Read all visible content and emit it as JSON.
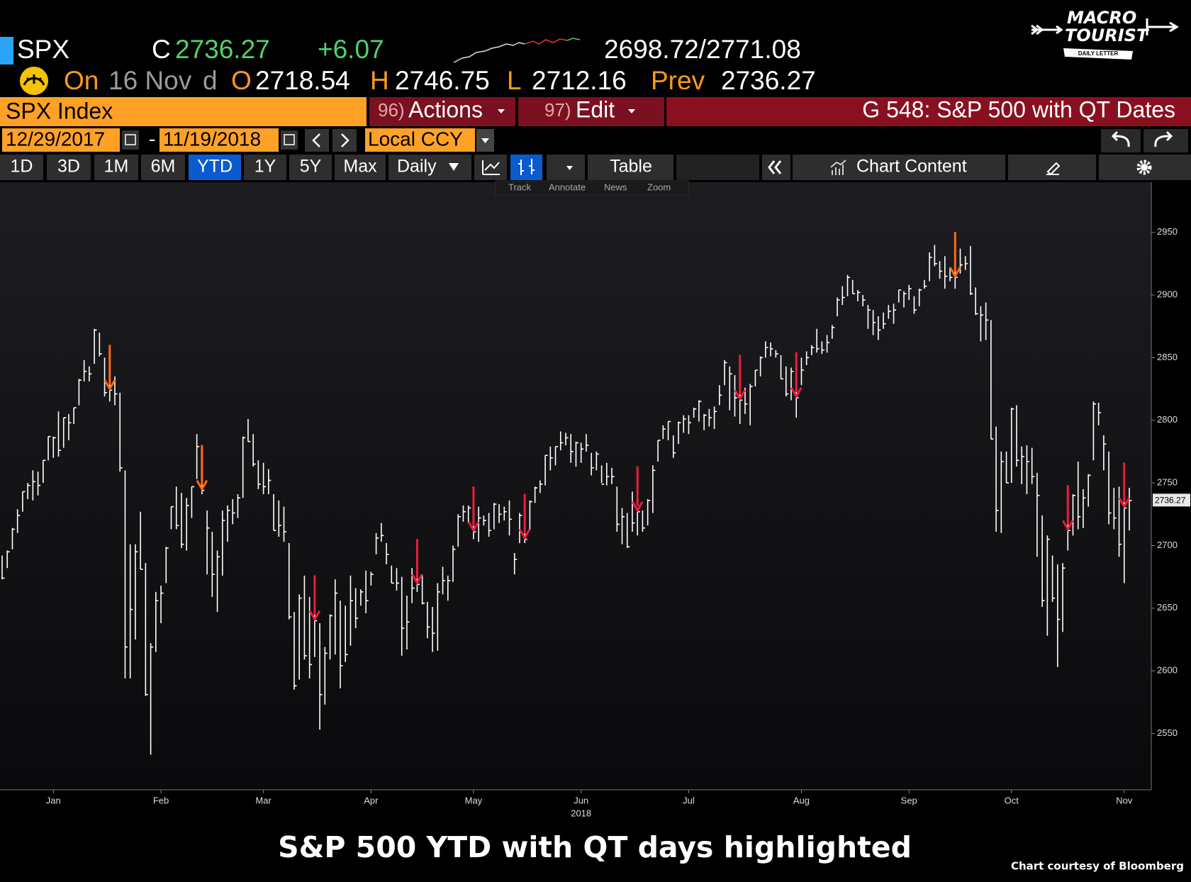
{
  "header": {
    "ticker": "SPX",
    "c_label": "C",
    "last": 2736.27,
    "change": "+6.07",
    "range": "2698.72/2771.08",
    "on_label": "On",
    "date": "16 Nov",
    "freq": "d",
    "open_label": "O",
    "open": 2718.54,
    "high_label": "H",
    "high": 2746.75,
    "low_label": "L",
    "low": 2712.16,
    "prev_label": "Prev",
    "prev": 2736.27
  },
  "toolbar": {
    "security": "SPX Index",
    "actions_num": "96)",
    "actions": "Actions",
    "edit_num": "97)",
    "edit": "Edit",
    "title": "G 548: S&P 500 with QT Dates",
    "start_date": "12/29/2017",
    "dash": "-",
    "end_date": "11/19/2018",
    "currency": "Local CCY",
    "periods": [
      "1D",
      "3D",
      "1M",
      "6M",
      "YTD",
      "1Y",
      "5Y",
      "Max"
    ],
    "frequency": "Daily",
    "table": "Table",
    "chart_content": "Chart Content",
    "tools": [
      "Track",
      "Annotate",
      "News",
      "Zoom"
    ]
  },
  "logo": {
    "line1": "MACRO",
    "line2": "TOURIST",
    "line3": "DAILY LETTER"
  },
  "chart_data": {
    "type": "hlc",
    "title": "S&P 500 YTD with QT days highlighted",
    "source": "Chart courtesy of Bloomberg",
    "color": "#ffffff",
    "categories": [
      null,
      null,
      null,
      null,
      null,
      null,
      null,
      null,
      null,
      null,
      "Jan",
      null,
      null,
      null,
      null,
      null,
      null,
      null,
      null,
      null,
      null,
      null,
      null,
      null,
      null,
      null,
      null,
      null,
      null,
      null,
      null,
      "Feb",
      null,
      null,
      null,
      null,
      null,
      null,
      null,
      null,
      null,
      null,
      null,
      null,
      null,
      null,
      null,
      null,
      null,
      null,
      null,
      "Mar",
      null,
      null,
      null,
      null,
      null,
      null,
      null,
      null,
      null,
      null,
      null,
      null,
      null,
      null,
      null,
      null,
      null,
      null,
      null,
      null,
      "Apr",
      null,
      null,
      null,
      null,
      null,
      null,
      null,
      null,
      null,
      null,
      null,
      null,
      null,
      null,
      null,
      null,
      null,
      null,
      null,
      "May",
      null,
      null,
      null,
      null,
      null,
      null,
      null,
      null,
      null,
      null,
      null,
      null,
      null,
      null,
      null,
      null,
      null,
      null,
      null,
      null,
      "Jun",
      null,
      null,
      null,
      null,
      null,
      null,
      null,
      null,
      null,
      null,
      null,
      null,
      null,
      null,
      null,
      null,
      null,
      null,
      null,
      null,
      "Jul",
      null,
      null,
      null,
      null,
      null,
      null,
      null,
      null,
      null,
      null,
      null,
      null,
      null,
      null,
      null,
      null,
      null,
      null,
      null,
      null,
      null,
      "Aug",
      null,
      null,
      null,
      null,
      null,
      null,
      null,
      null,
      null,
      null,
      null,
      null,
      null,
      null,
      null,
      null,
      null,
      null,
      null,
      null,
      "Sep",
      null,
      null,
      null,
      null,
      null,
      null,
      null,
      null,
      null,
      null,
      null,
      null,
      null,
      null,
      null,
      null,
      null,
      null,
      null,
      "Oct",
      null,
      null,
      null,
      null,
      null,
      null,
      null,
      null,
      null,
      null,
      null,
      null,
      null,
      null,
      null,
      null,
      null,
      null,
      null,
      null,
      null,
      "Nov",
      null
    ],
    "x_sublabel": "2018",
    "high": [
      2692,
      2696,
      2714,
      2729,
      2743,
      2750,
      2760,
      2759,
      2768,
      2787,
      2787,
      2807,
      2802,
      2805,
      2810,
      2833,
      2848,
      2843,
      2873,
      2870,
      2850,
      2839,
      2835,
      2822,
      2760,
      2701,
      2701,
      2727,
      2686,
      2622,
      2663,
      2668,
      2699,
      2731,
      2747,
      2742,
      2738,
      2747,
      2789,
      2761,
      2728,
      2711,
      2696,
      2728,
      2732,
      2737,
      2741,
      2787,
      2801,
      2789,
      2768,
      2766,
      2761,
      2741,
      2736,
      2731,
      2702,
      2647,
      2661,
      2676,
      2659,
      2659,
      2638,
      2619,
      2645,
      2673,
      2656,
      2652,
      2676,
      2666,
      2665,
      2680,
      2679,
      2710,
      2718,
      2702,
      2684,
      2682,
      2675,
      2660,
      2682,
      2682,
      2677,
      2655,
      2651,
      2670,
      2683,
      2676,
      2700,
      2725,
      2732,
      2732,
      2726,
      2731,
      2724,
      2726,
      2734,
      2733,
      2731,
      2736,
      2694,
      2726,
      2724,
      2736,
      2747,
      2752,
      2772,
      2779,
      2779,
      2791,
      2790,
      2789,
      2783,
      2782,
      2789,
      2774,
      2775,
      2764,
      2766,
      2762,
      2747,
      2730,
      2726,
      2743,
      2727,
      2728,
      2737,
      2764,
      2784,
      2796,
      2799,
      2788,
      2799,
      2804,
      2804,
      2810,
      2816,
      2805,
      2809,
      2811,
      2828,
      2848,
      2843,
      2836,
      2821,
      2826,
      2829,
      2840,
      2851,
      2863,
      2862,
      2856,
      2852,
      2843,
      2842,
      2826,
      2850,
      2855,
      2860,
      2873,
      2863,
      2868,
      2876,
      2898,
      2907,
      2916,
      2912,
      2904,
      2900,
      2892,
      2888,
      2883,
      2886,
      2892,
      2893,
      2904,
      2903,
      2908,
      2899,
      2905,
      2912,
      2934,
      2940,
      2927,
      2931,
      2922,
      2920,
      2937,
      2931,
      2939,
      2906,
      2891,
      2894,
      2880,
      2795,
      2775,
      2775,
      2810,
      2812,
      2779,
      2780,
      2778,
      2758,
      2724,
      2708,
      2692,
      2685,
      2686,
      2736,
      2741,
      2767,
      2745,
      2757,
      2815,
      2814,
      2788,
      2775,
      2746,
      2747,
      2735,
      2746
    ],
    "low": [
      2673,
      2682,
      2697,
      2710,
      2727,
      2737,
      2736,
      2740,
      2750,
      2768,
      2770,
      2771,
      2778,
      2784,
      2797,
      2812,
      2831,
      2831,
      2845,
      2851,
      2819,
      2815,
      2812,
      2759,
      2594,
      2594,
      2625,
      2681,
      2580,
      2533,
      2615,
      2638,
      2670,
      2713,
      2713,
      2698,
      2696,
      2722,
      2753,
      2741,
      2677,
      2659,
      2647,
      2676,
      2703,
      2717,
      2722,
      2738,
      2783,
      2763,
      2745,
      2741,
      2741,
      2712,
      2707,
      2703,
      2641,
      2585,
      2593,
      2609,
      2594,
      2611,
      2553,
      2573,
      2609,
      2613,
      2586,
      2607,
      2620,
      2634,
      2652,
      2646,
      2668,
      2693,
      2703,
      2685,
      2670,
      2664,
      2612,
      2617,
      2654,
      2663,
      2653,
      2626,
      2615,
      2616,
      2661,
      2656,
      2671,
      2699,
      2719,
      2718,
      2705,
      2703,
      2716,
      2707,
      2713,
      2718,
      2720,
      2708,
      2677,
      2702,
      2702,
      2713,
      2734,
      2742,
      2748,
      2760,
      2764,
      2776,
      2780,
      2766,
      2763,
      2766,
      2775,
      2756,
      2760,
      2750,
      2748,
      2749,
      2711,
      2701,
      2698,
      2711,
      2708,
      2711,
      2716,
      2726,
      2767,
      2785,
      2784,
      2770,
      2781,
      2790,
      2789,
      2802,
      2799,
      2792,
      2795,
      2793,
      2812,
      2828,
      2808,
      2803,
      2797,
      2805,
      2796,
      2827,
      2835,
      2850,
      2851,
      2850,
      2833,
      2819,
      2816,
      2802,
      2828,
      2844,
      2852,
      2854,
      2853,
      2854,
      2865,
      2883,
      2892,
      2899,
      2901,
      2895,
      2891,
      2873,
      2868,
      2864,
      2873,
      2881,
      2877,
      2894,
      2890,
      2896,
      2885,
      2891,
      2905,
      2911,
      2923,
      2913,
      2905,
      2911,
      2905,
      2917,
      2920,
      2900,
      2884,
      2863,
      2864,
      2785,
      2711,
      2710,
      2750,
      2750,
      2763,
      2749,
      2741,
      2749,
      2691,
      2651,
      2628,
      2655,
      2603,
      2631,
      2696,
      2708,
      2713,
      2714,
      2731,
      2768,
      2796,
      2760,
      2717,
      2713,
      2691,
      2670,
      2712
    ],
    "close": [
      2674,
      2695,
      2713,
      2724,
      2743,
      2748,
      2751,
      2748,
      2768,
      2787,
      2786,
      2776,
      2802,
      2798,
      2810,
      2832,
      2839,
      2837,
      2872,
      2853,
      2822,
      2824,
      2821,
      2762,
      2619,
      2649,
      2695,
      2681,
      2581,
      2619,
      2656,
      2662,
      2698,
      2731,
      2716,
      2701,
      2732,
      2747,
      2779,
      2744,
      2714,
      2677,
      2691,
      2720,
      2728,
      2726,
      2738,
      2786,
      2783,
      2765,
      2749,
      2747,
      2752,
      2712,
      2716,
      2711,
      2643,
      2588,
      2658,
      2612,
      2605,
      2640,
      2581,
      2614,
      2644,
      2662,
      2604,
      2613,
      2656,
      2642,
      2663,
      2656,
      2677,
      2706,
      2708,
      2693,
      2670,
      2670,
      2634,
      2639,
      2666,
      2669,
      2654,
      2635,
      2630,
      2663,
      2672,
      2672,
      2697,
      2723,
      2727,
      2730,
      2711,
      2722,
      2720,
      2712,
      2733,
      2725,
      2727,
      2721,
      2689,
      2724,
      2705,
      2735,
      2746,
      2749,
      2772,
      2770,
      2779,
      2782,
      2786,
      2775,
      2782,
      2777,
      2780,
      2762,
      2773,
      2749,
      2755,
      2755,
      2717,
      2723,
      2699,
      2718,
      2727,
      2714,
      2736,
      2760,
      2784,
      2793,
      2799,
      2774,
      2798,
      2801,
      2798,
      2809,
      2815,
      2804,
      2802,
      2807,
      2820,
      2846,
      2837,
      2818,
      2816,
      2813,
      2827,
      2840,
      2850,
      2858,
      2857,
      2853,
      2833,
      2821,
      2839,
      2818,
      2840,
      2850,
      2858,
      2857,
      2856,
      2862,
      2874,
      2896,
      2898,
      2914,
      2901,
      2902,
      2896,
      2888,
      2878,
      2872,
      2877,
      2887,
      2888,
      2904,
      2901,
      2905,
      2888,
      2904,
      2907,
      2930,
      2925,
      2919,
      2915,
      2914,
      2914,
      2924,
      2925,
      2901,
      2885,
      2884,
      2880,
      2785,
      2728,
      2767,
      2750,
      2809,
      2768,
      2771,
      2767,
      2755,
      2740,
      2656,
      2705,
      2658,
      2641,
      2682,
      2712,
      2740,
      2723,
      2738,
      2756,
      2813,
      2806,
      2781,
      2726,
      2722,
      2701,
      2730,
      2736
    ],
    "ylim": [
      2505,
      2990
    ],
    "yticks": [
      2550,
      2600,
      2650,
      2700,
      2750,
      2800,
      2850,
      2900,
      2950
    ],
    "last_price": {
      "value": 2736.27,
      "label": "2736.27"
    },
    "qt_days": [
      {
        "at": 21,
        "color": "#ff6a13"
      },
      {
        "at": 39,
        "color": "#ff6a13"
      },
      {
        "at": 61,
        "color": "#ee1c3c"
      },
      {
        "at": 81,
        "color": "#ee1c3c"
      },
      {
        "at": 92,
        "color": "#ee1c3c"
      },
      {
        "at": 102,
        "color": "#ee1c3c"
      },
      {
        "at": 124,
        "color": "#ee1c3c"
      },
      {
        "at": 144,
        "color": "#ee1c3c"
      },
      {
        "at": 155,
        "color": "#ee1c3c"
      },
      {
        "at": 186,
        "color": "#ff6a13"
      },
      {
        "at": 208,
        "color": "#ee1c3c"
      },
      {
        "at": 219,
        "color": "#ee1c3c"
      }
    ]
  }
}
